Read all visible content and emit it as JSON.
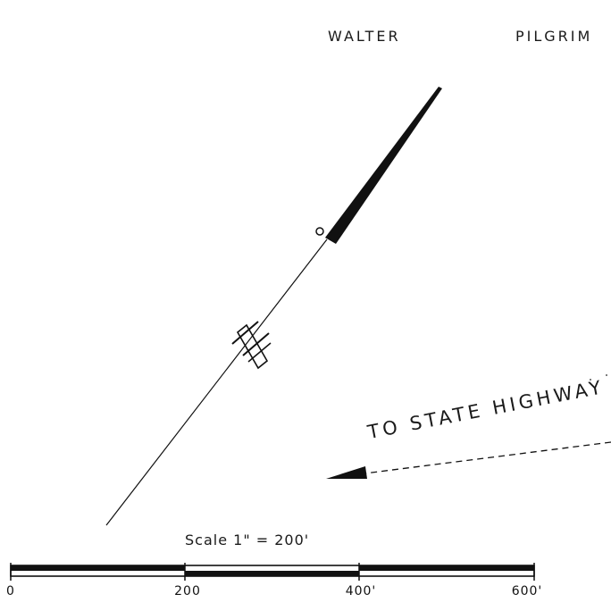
{
  "map": {
    "owner_label_parts": [
      "WALTER",
      "PILGRIM"
    ],
    "highway_label": "TO STATE HIGHWAY",
    "scale": {
      "title": "Scale 1\" = 200'",
      "ticks": [
        "0",
        "200",
        "400'",
        "600'"
      ],
      "max_feet": 600
    },
    "colors": {
      "ink": "#111111",
      "paper": "#ffffff"
    }
  }
}
